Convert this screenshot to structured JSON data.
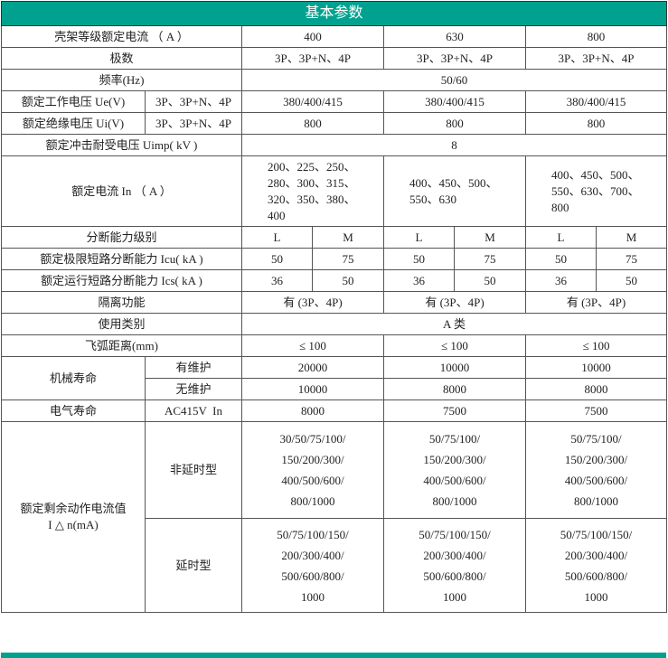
{
  "header": {
    "title": "基本参数"
  },
  "frame_current": {
    "label": "壳架等级额定电流 （ A ）",
    "values": [
      "400",
      "630",
      "800"
    ]
  },
  "poles": {
    "label": "极数",
    "values": [
      "3P、3P+N、4P",
      "3P、3P+N、4P",
      "3P、3P+N、4P"
    ]
  },
  "frequency": {
    "label": "频率(Hz)",
    "value": "50/60"
  },
  "ue": {
    "label": "额定工作电压 Ue(V)",
    "sub": "3P、3P+N、4P",
    "values": [
      "380/400/415",
      "380/400/415",
      "380/400/415"
    ]
  },
  "ui": {
    "label": "额定绝缘电压 Ui(V)",
    "sub": "3P、3P+N、4P",
    "values": [
      "800",
      "800",
      "800"
    ]
  },
  "uimp": {
    "label": "额定冲击耐受电压 Uimp( kV )",
    "value": "8"
  },
  "in": {
    "label": "额定电流 In （ A ）",
    "values": [
      "200、225、250、280、300、315、320、350、380、400",
      "400、450、500、550、630",
      "400、450、500、550、630、700、800"
    ]
  },
  "breaking_class": {
    "label": "分断能力级别",
    "values": [
      "L",
      "M",
      "L",
      "M",
      "L",
      "M"
    ]
  },
  "icu": {
    "label": "额定极限短路分断能力 Icu( kA )",
    "values": [
      "50",
      "75",
      "50",
      "75",
      "50",
      "75"
    ]
  },
  "ics": {
    "label": "额定运行短路分断能力 Ics( kA )",
    "values": [
      "36",
      "50",
      "36",
      "50",
      "36",
      "50"
    ]
  },
  "isolation": {
    "label": "隔离功能",
    "values": [
      "有 (3P、4P)",
      "有 (3P、4P)",
      "有 (3P、4P)"
    ]
  },
  "category": {
    "label": "使用类别",
    "value": "A 类"
  },
  "arc": {
    "label": "飞弧距离(mm)",
    "values": [
      "≤ 100",
      "≤ 100",
      "≤ 100"
    ]
  },
  "mech_life": {
    "label": "机械寿命",
    "with_maint": {
      "label": "有维护",
      "values": [
        "20000",
        "10000",
        "10000"
      ]
    },
    "without_maint": {
      "label": "无维护",
      "values": [
        "10000",
        "8000",
        "8000"
      ]
    }
  },
  "elec_life": {
    "label": "电气寿命",
    "sub": "AC415V  In",
    "values": [
      "8000",
      "7500",
      "7500"
    ]
  },
  "residual": {
    "label": "额定剩余动作电流值",
    "label2": "I △ n(mA)",
    "non_delay": {
      "label": "非延时型",
      "values": [
        [
          "30/50/75/100/",
          "150/200/300/",
          "400/500/600/",
          "800/1000"
        ],
        [
          "50/75/100/",
          "150/200/300/",
          "400/500/600/",
          "800/1000"
        ],
        [
          "50/75/100/",
          "150/200/300/",
          "400/500/600/",
          "800/1000"
        ]
      ]
    },
    "delay": {
      "label": "延时型",
      "values": [
        [
          "50/75/100/150/",
          "200/300/400/",
          "500/600/800/",
          "1000"
        ],
        [
          "50/75/100/150/",
          "200/300/400/",
          "500/600/800/",
          "1000"
        ],
        [
          "50/75/100/150/",
          "200/300/400/",
          "500/600/800/",
          "1000"
        ]
      ]
    }
  },
  "colors": {
    "header": "#00a28f"
  }
}
